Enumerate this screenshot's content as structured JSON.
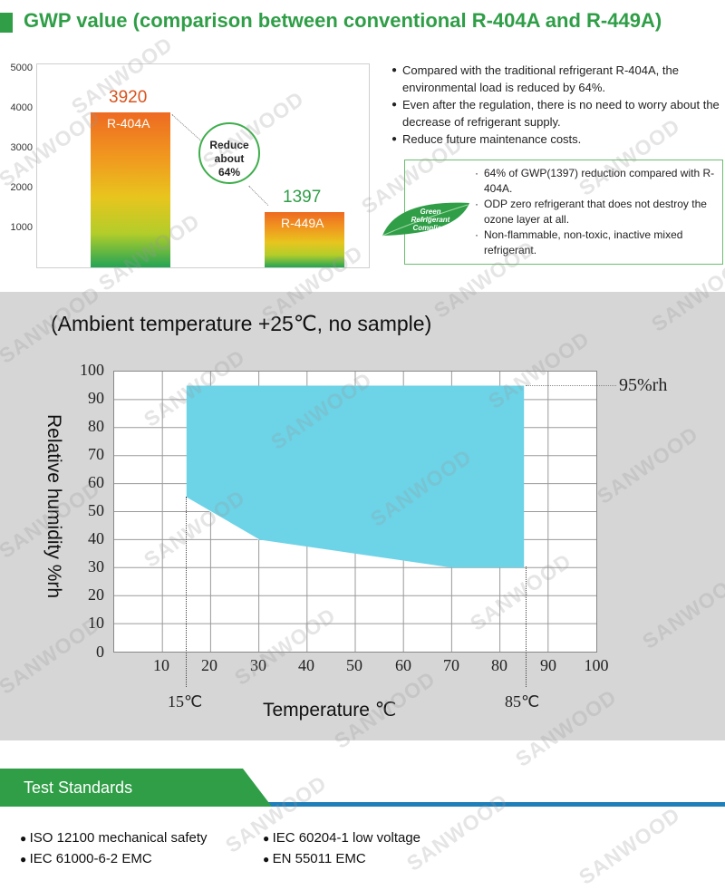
{
  "header": {
    "title": "GWP value (comparison between conventional R-404A and R-449A)"
  },
  "gwp_chart": {
    "type": "bar",
    "yticks": [
      "5000",
      "4000",
      "3000",
      "2000",
      "1000"
    ],
    "ylim": [
      0,
      5000
    ],
    "bars": [
      {
        "name": "R-404A",
        "value": 3920,
        "value_label": "3920",
        "value_color": "#d9531e"
      },
      {
        "name": "R-449A",
        "value": 1397,
        "value_label": "1397",
        "value_color": "#2f9e47"
      }
    ],
    "reduce_lines": [
      "Reduce",
      "about",
      "64%"
    ]
  },
  "bullets": [
    "Compared with the traditional refrigerant R-404A, the environmental load is reduced by 64%.",
    "Even after the regulation, there is no need to worry about the decrease of refrigerant supply.",
    "Reduce future maintenance costs."
  ],
  "green_box": {
    "leaf_lines": [
      "Green",
      "Refrigerant",
      "Compliant"
    ],
    "items": [
      "64% of GWP(1397) reduction compared with R-404A.",
      "ODP zero refrigerant that does not destroy the ozone layer at all.",
      "Non-flammable, non-toxic, inactive mixed refrigerant."
    ]
  },
  "humidity": {
    "title": "(Ambient temperature +25℃, no sample)",
    "ylabel": "Relative humidity %rh",
    "xlabel": "Temperature ℃",
    "ytick_labels": [
      "100",
      "90",
      "80",
      "70",
      "60",
      "50",
      "40",
      "30",
      "20",
      "10",
      "0"
    ],
    "xtick_labels": [
      "10",
      "20",
      "30",
      "40",
      "50",
      "60",
      "70",
      "80",
      "90",
      "100"
    ],
    "annot_rh": "95%rh",
    "annot_low": "15℃",
    "annot_high": "85℃",
    "fill_color": "#6dd3e7"
  },
  "chart_data": [
    {
      "type": "bar",
      "categories": [
        "R-404A",
        "R-449A"
      ],
      "values": [
        3920,
        1397
      ],
      "title": "",
      "xlabel": "",
      "ylabel": "",
      "ylim": [
        0,
        5000
      ],
      "annotations": [
        "Reduce about 64%"
      ],
      "legend": "none"
    },
    {
      "type": "area",
      "title": "(Ambient temperature +25℃, no sample)",
      "xlabel": "Temperature ℃",
      "ylabel": "Relative humidity %rh",
      "xlim": [
        0,
        100
      ],
      "ylim": [
        0,
        100
      ],
      "grid": true,
      "series": [
        {
          "name": "",
          "x": [
            15,
            85
          ],
          "y": [
            95,
            95
          ]
        },
        {
          "name": "",
          "x": [
            15,
            30,
            70,
            85
          ],
          "y": [
            55,
            40,
            30,
            30
          ]
        }
      ],
      "annotations": [
        "95%rh",
        "15℃",
        "85℃"
      ]
    }
  ],
  "test_standards": {
    "title": "Test Standards",
    "items": [
      "ISO 12100   mechanical safety",
      "IEC 60204-1   low voltage",
      "IEC 61000-6-2   EMC",
      "EN 55011   EMC"
    ]
  },
  "watermark": "SANWOOD"
}
